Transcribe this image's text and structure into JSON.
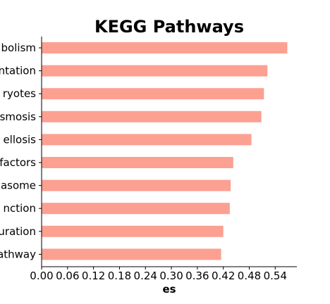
{
  "chart_data": {
    "type": "bar",
    "orientation": "horizontal",
    "title": "KEGG Pathways",
    "xlabel": "es",
    "ylabel": "",
    "xlim": [
      0,
      0.59
    ],
    "xticks": [
      "0.00",
      "0.06",
      "0.12",
      "0.18",
      "0.24",
      "0.30",
      "0.36",
      "0.42",
      "0.48",
      "0.54"
    ],
    "categories": [
      "bolism",
      "ntation",
      "ryotes",
      "smosis",
      "ellosis",
      "factors",
      "asome",
      "nction",
      "uration",
      "athway"
    ],
    "values": [
      0.568,
      0.522,
      0.514,
      0.508,
      0.485,
      0.443,
      0.437,
      0.435,
      0.42,
      0.415
    ],
    "bar_color": "#fca092",
    "grid": false,
    "legend": "none"
  }
}
